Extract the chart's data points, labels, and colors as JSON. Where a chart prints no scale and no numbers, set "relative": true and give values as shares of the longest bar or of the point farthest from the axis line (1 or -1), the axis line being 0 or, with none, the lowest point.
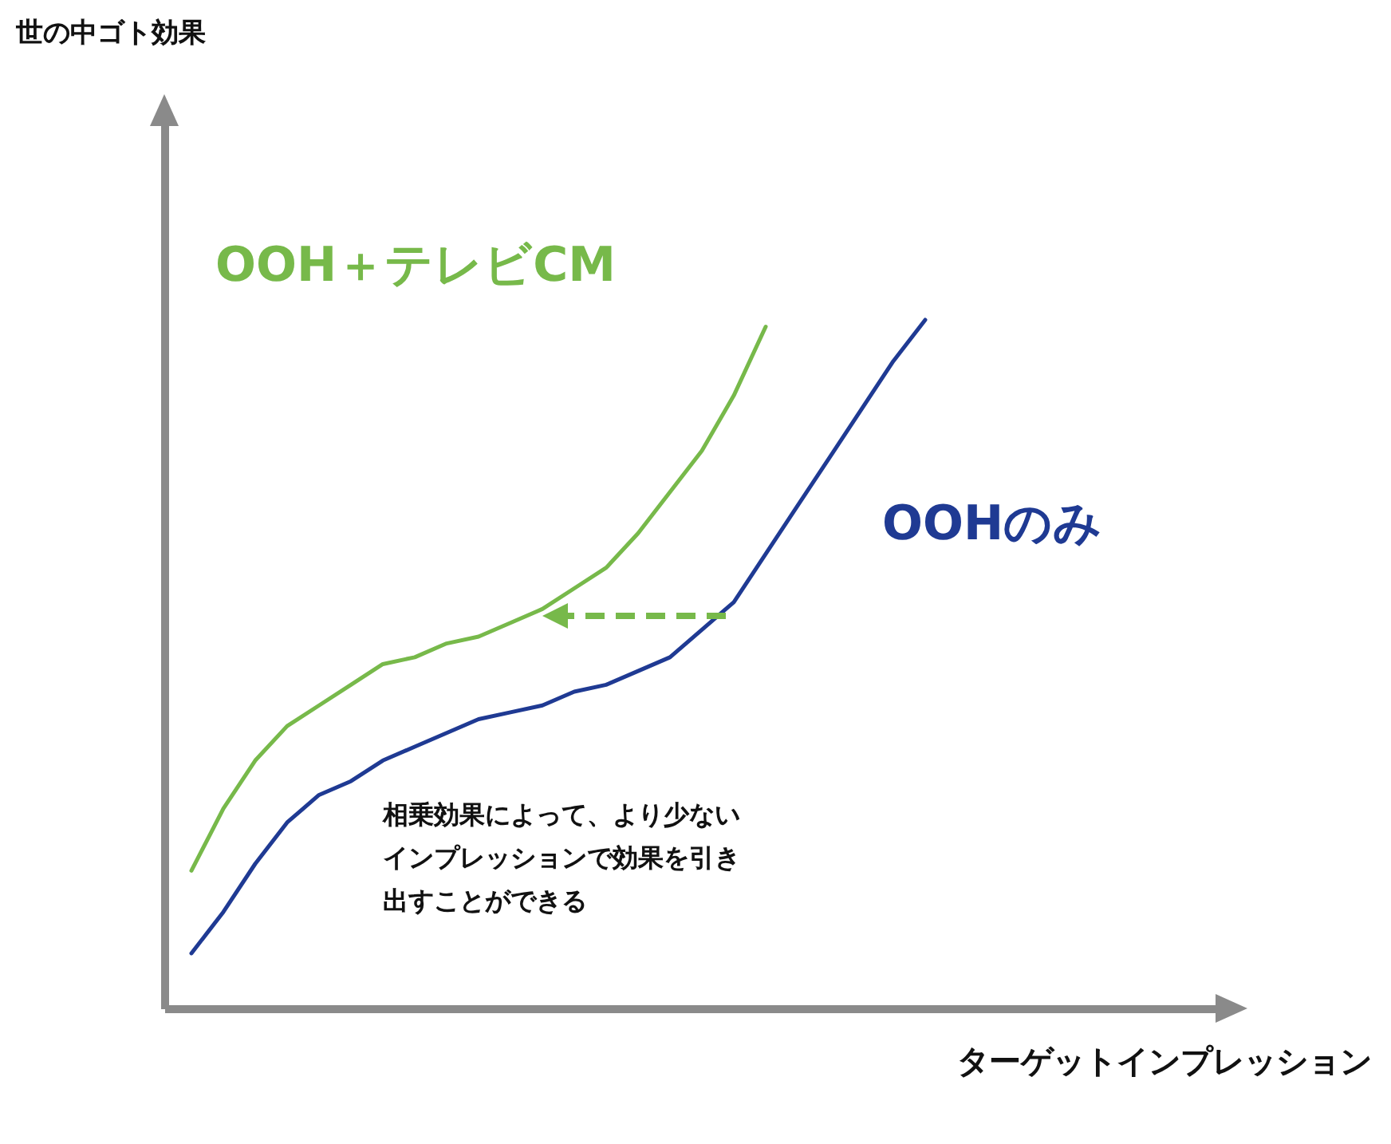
{
  "chart_data": {
    "type": "line",
    "relative": true,
    "xlabel": "ターゲットインプレッション",
    "annotations": [
      "世の中ゴト効果",
      "相乗効果によって、より少ないインプレッションで効果を引き出すことができる"
    ],
    "categories": [
      null,
      null,
      null,
      null,
      null,
      null,
      null,
      null,
      null,
      null,
      null,
      null,
      null,
      null,
      null,
      null,
      null,
      null,
      null,
      null,
      null,
      null,
      null,
      null
    ],
    "series": [
      {
        "name": "OOH＋テレビCM",
        "color": "#77b94a",
        "values": [
          0.2,
          0.29,
          0.36,
          0.41,
          0.44,
          0.47,
          0.5,
          0.51,
          0.53,
          0.54,
          0.56,
          0.58,
          0.61,
          0.64,
          0.69,
          0.75,
          0.81,
          0.89,
          0.99,
          null,
          null,
          null,
          null,
          null
        ]
      },
      {
        "name": "OOHのみ",
        "color": "#1f3a93",
        "values": [
          0.08,
          0.14,
          0.21,
          0.27,
          0.31,
          0.33,
          0.36,
          0.38,
          0.4,
          0.42,
          0.43,
          0.44,
          0.46,
          0.47,
          0.49,
          0.51,
          0.55,
          0.59,
          0.66,
          0.73,
          0.8,
          0.87,
          0.94,
          1.0
        ]
      }
    ]
  }
}
